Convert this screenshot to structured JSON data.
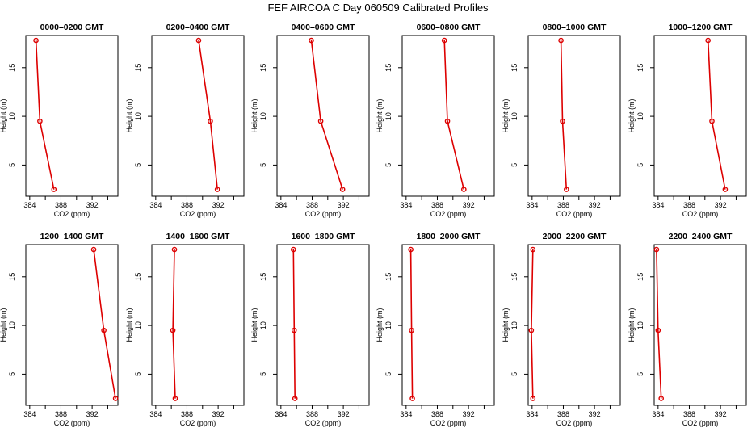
{
  "page": {
    "title": "FEF AIRCOA C  Day 060509  Calibrated Profiles"
  },
  "colors": {
    "series": "#dd0000",
    "axes": "#000000"
  },
  "chart_data": [
    {
      "type": "line",
      "title": "0000–0200 GMT",
      "xlabel": "CO2 (ppm)",
      "ylabel": "Height (m)",
      "xlim": [
        383.5,
        395.3
      ],
      "ylim": [
        1.8,
        18.3
      ],
      "xticks": [
        384,
        388,
        392
      ],
      "yticks": [
        5,
        10,
        15
      ],
      "series": [
        {
          "x": [
            387.1,
            385.3,
            384.8
          ],
          "y": [
            2.5,
            9.5,
            17.8
          ]
        }
      ]
    },
    {
      "type": "line",
      "title": "0200–0400 GMT",
      "xlabel": "CO2 (ppm)",
      "ylabel": "Height (m)",
      "xlim": [
        383.5,
        395.3
      ],
      "ylim": [
        1.8,
        18.3
      ],
      "xticks": [
        384,
        388,
        392
      ],
      "yticks": [
        5,
        10,
        15
      ],
      "series": [
        {
          "x": [
            391.9,
            391.0,
            389.5
          ],
          "y": [
            2.5,
            9.5,
            17.8
          ]
        }
      ]
    },
    {
      "type": "line",
      "title": "0400–0600 GMT",
      "xlabel": "CO2 (ppm)",
      "ylabel": "Height (m)",
      "xlim": [
        383.5,
        395.3
      ],
      "ylim": [
        1.8,
        18.3
      ],
      "xticks": [
        384,
        388,
        392
      ],
      "yticks": [
        5,
        10,
        15
      ],
      "series": [
        {
          "x": [
            391.9,
            389.1,
            387.9
          ],
          "y": [
            2.5,
            9.5,
            17.8
          ]
        }
      ]
    },
    {
      "type": "line",
      "title": "0600–0800 GMT",
      "xlabel": "CO2 (ppm)",
      "ylabel": "Height (m)",
      "xlim": [
        383.5,
        395.3
      ],
      "ylim": [
        1.8,
        18.3
      ],
      "xticks": [
        384,
        388,
        392
      ],
      "yticks": [
        5,
        10,
        15
      ],
      "series": [
        {
          "x": [
            391.4,
            389.3,
            388.9
          ],
          "y": [
            2.5,
            9.5,
            17.8
          ]
        }
      ]
    },
    {
      "type": "line",
      "title": "0800–1000 GMT",
      "xlabel": "CO2 (ppm)",
      "ylabel": "Height (m)",
      "xlim": [
        383.5,
        395.3
      ],
      "ylim": [
        1.8,
        18.3
      ],
      "xticks": [
        384,
        388,
        392
      ],
      "yticks": [
        5,
        10,
        15
      ],
      "series": [
        {
          "x": [
            388.4,
            387.9,
            387.7
          ],
          "y": [
            2.5,
            9.5,
            17.8
          ]
        }
      ]
    },
    {
      "type": "line",
      "title": "1000–1200 GMT",
      "xlabel": "CO2 (ppm)",
      "ylabel": "Height (m)",
      "xlim": [
        383.5,
        395.3
      ],
      "ylim": [
        1.8,
        18.3
      ],
      "xticks": [
        384,
        388,
        392
      ],
      "yticks": [
        5,
        10,
        15
      ],
      "series": [
        {
          "x": [
            392.6,
            390.9,
            390.4
          ],
          "y": [
            2.5,
            9.5,
            17.8
          ]
        }
      ]
    },
    {
      "type": "line",
      "title": "1200–1400 GMT",
      "xlabel": "CO2 (ppm)",
      "ylabel": "Height (m)",
      "xlim": [
        383.5,
        395.3
      ],
      "ylim": [
        1.8,
        18.3
      ],
      "xticks": [
        384,
        388,
        392
      ],
      "yticks": [
        5,
        10,
        15
      ],
      "series": [
        {
          "x": [
            395.0,
            393.5,
            392.2
          ],
          "y": [
            2.5,
            9.5,
            17.8
          ]
        }
      ]
    },
    {
      "type": "line",
      "title": "1400–1600 GMT",
      "xlabel": "CO2 (ppm)",
      "ylabel": "Height (m)",
      "xlim": [
        383.5,
        395.3
      ],
      "ylim": [
        1.8,
        18.3
      ],
      "xticks": [
        384,
        388,
        392
      ],
      "yticks": [
        5,
        10,
        15
      ],
      "series": [
        {
          "x": [
            386.5,
            386.2,
            386.4
          ],
          "y": [
            2.5,
            9.5,
            17.8
          ]
        }
      ]
    },
    {
      "type": "line",
      "title": "1600–1800 GMT",
      "xlabel": "CO2 (ppm)",
      "ylabel": "Height (m)",
      "xlim": [
        383.5,
        395.3
      ],
      "ylim": [
        1.8,
        18.3
      ],
      "xticks": [
        384,
        388,
        392
      ],
      "yticks": [
        5,
        10,
        15
      ],
      "series": [
        {
          "x": [
            385.8,
            385.7,
            385.6
          ],
          "y": [
            2.5,
            9.5,
            17.8
          ]
        }
      ]
    },
    {
      "type": "line",
      "title": "1800–2000 GMT",
      "xlabel": "CO2 (ppm)",
      "ylabel": "Height (m)",
      "xlim": [
        383.5,
        395.3
      ],
      "ylim": [
        1.8,
        18.3
      ],
      "xticks": [
        384,
        388,
        392
      ],
      "yticks": [
        5,
        10,
        15
      ],
      "series": [
        {
          "x": [
            384.8,
            384.7,
            384.6
          ],
          "y": [
            2.5,
            9.5,
            17.8
          ]
        }
      ]
    },
    {
      "type": "line",
      "title": "2000–2200 GMT",
      "xlabel": "CO2 (ppm)",
      "ylabel": "Height (m)",
      "xlim": [
        383.5,
        395.3
      ],
      "ylim": [
        1.8,
        18.3
      ],
      "xticks": [
        384,
        388,
        392
      ],
      "yticks": [
        5,
        10,
        15
      ],
      "series": [
        {
          "x": [
            384.1,
            383.9,
            384.1
          ],
          "y": [
            2.5,
            9.5,
            17.8
          ]
        }
      ]
    },
    {
      "type": "line",
      "title": "2200–2400 GMT",
      "xlabel": "CO2 (ppm)",
      "ylabel": "Height (m)",
      "xlim": [
        383.5,
        395.3
      ],
      "ylim": [
        1.8,
        18.3
      ],
      "xticks": [
        384,
        388,
        392
      ],
      "yticks": [
        5,
        10,
        15
      ],
      "series": [
        {
          "x": [
            384.4,
            384.0,
            383.8
          ],
          "y": [
            2.5,
            9.5,
            17.8
          ]
        }
      ]
    }
  ]
}
